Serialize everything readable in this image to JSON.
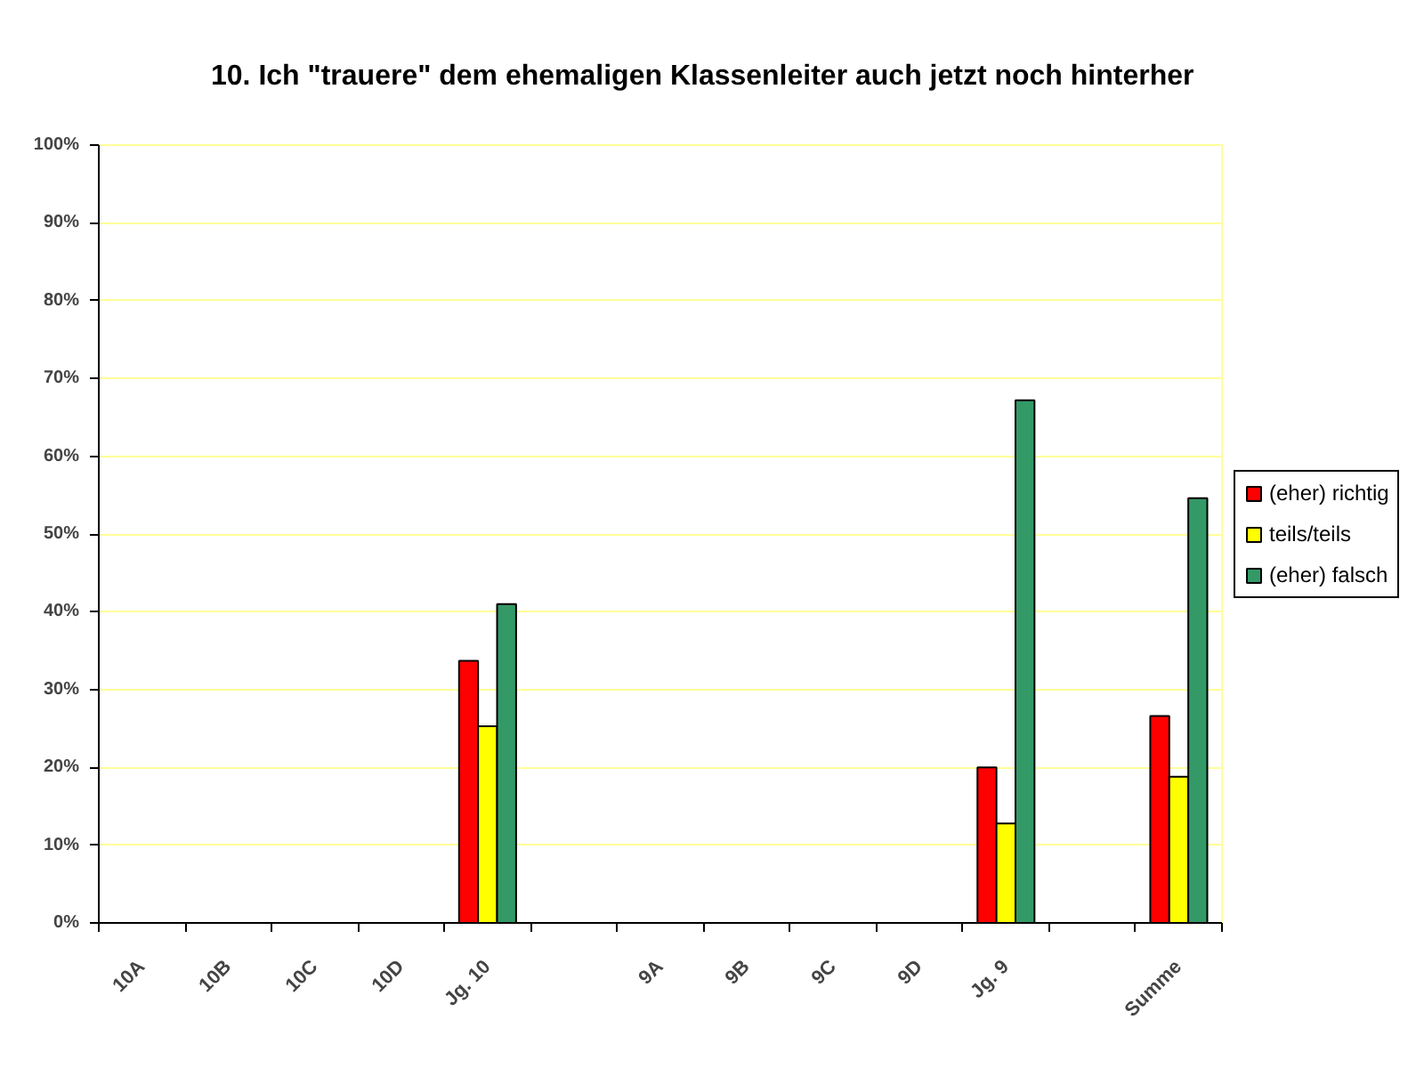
{
  "chart_data": {
    "type": "bar",
    "title": "10. Ich \"trauere\" dem ehemaligen Klassenleiter auch jetzt noch hinterher",
    "categories": [
      "10A",
      "10B",
      "10C",
      "10D",
      "Jg. 10",
      null,
      "9A",
      "9B",
      "9C",
      "9D",
      "Jg. 9",
      null,
      "Summe"
    ],
    "series": [
      {
        "name": "(eher) richtig",
        "color": "#ff0000",
        "values": [
          null,
          null,
          null,
          null,
          33.7,
          null,
          null,
          null,
          null,
          null,
          20.0,
          null,
          26.6
        ]
      },
      {
        "name": "teils/teils",
        "color": "#ffff00",
        "values": [
          null,
          null,
          null,
          null,
          25.3,
          null,
          null,
          null,
          null,
          null,
          12.8,
          null,
          18.8
        ]
      },
      {
        "name": "(eher) falsch",
        "color": "#339966",
        "values": [
          null,
          null,
          null,
          null,
          41.0,
          null,
          null,
          null,
          null,
          null,
          67.2,
          null,
          54.6
        ]
      }
    ],
    "ylim": [
      0,
      100
    ],
    "yticks": [
      {
        "value": 0,
        "label": "0%"
      },
      {
        "value": 10,
        "label": "10%"
      },
      {
        "value": 20,
        "label": "20%"
      },
      {
        "value": 30,
        "label": "30%"
      },
      {
        "value": 40,
        "label": "40%"
      },
      {
        "value": 50,
        "label": "50%"
      },
      {
        "value": 60,
        "label": "60%"
      },
      {
        "value": 70,
        "label": "70%"
      },
      {
        "value": 80,
        "label": "80%"
      },
      {
        "value": 90,
        "label": "90%"
      },
      {
        "value": 100,
        "label": "100%"
      }
    ],
    "grid": "y",
    "legend": "right"
  }
}
